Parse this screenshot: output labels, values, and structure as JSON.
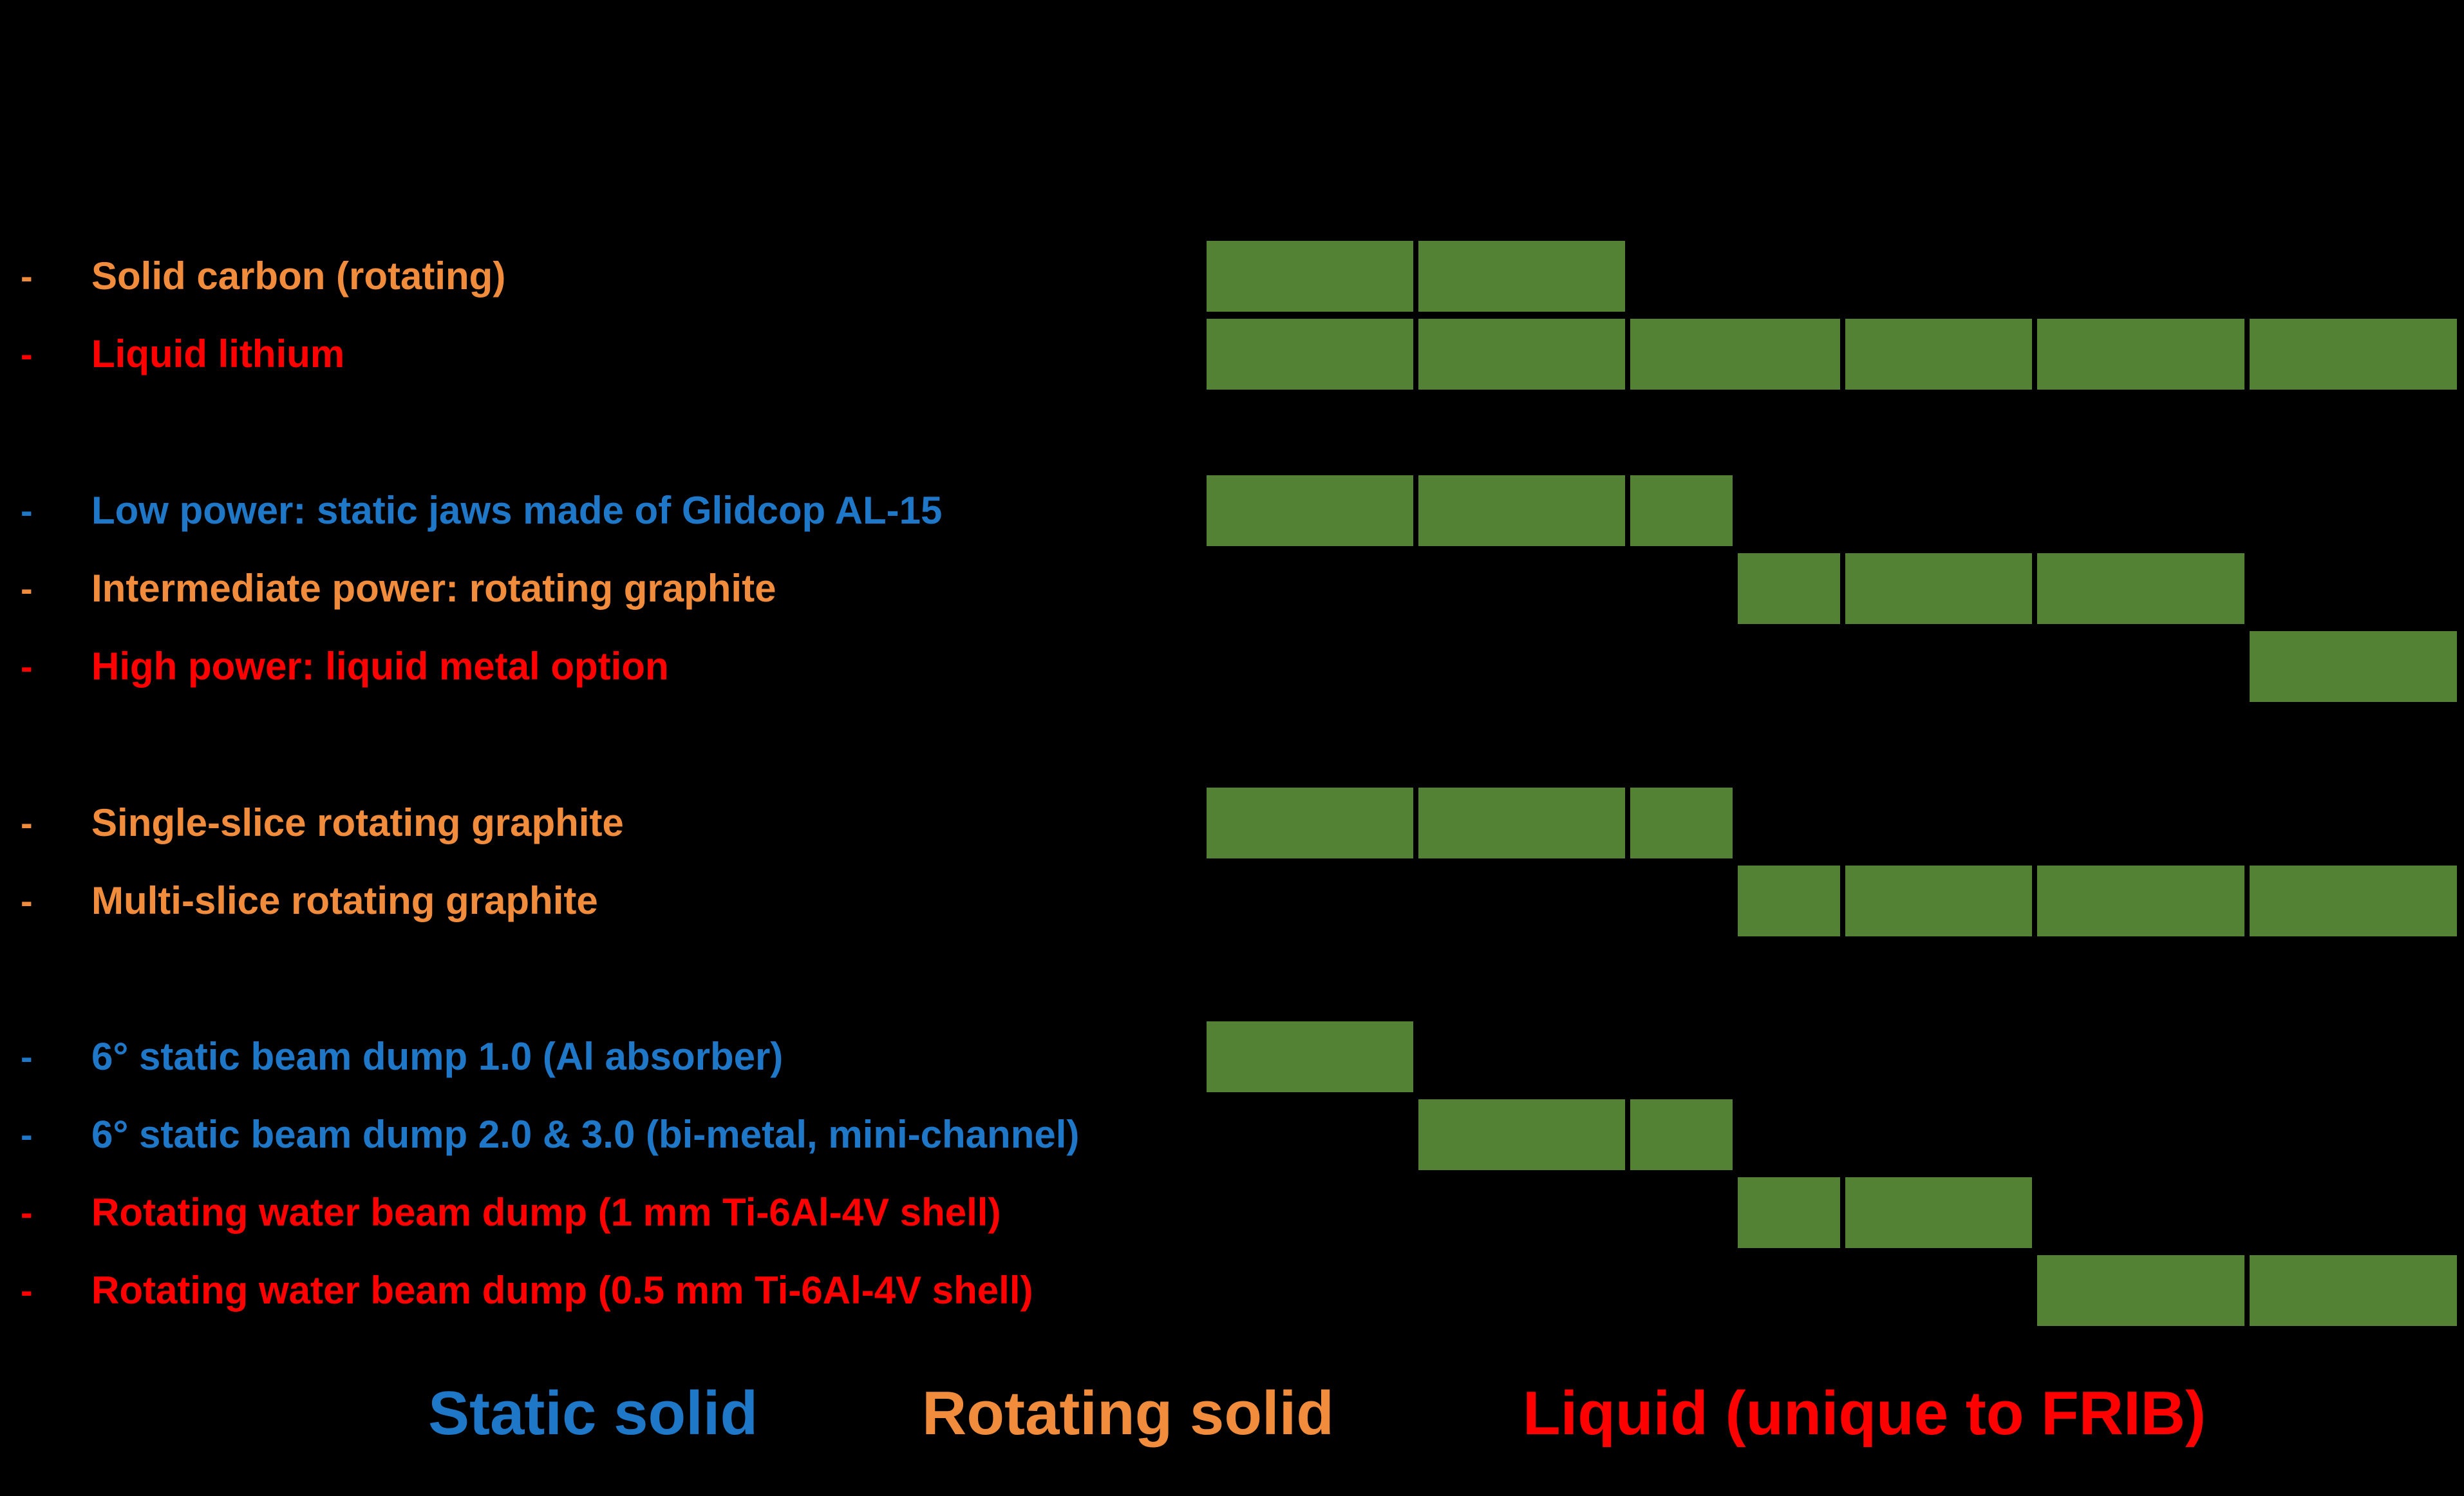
{
  "colors": {
    "static": "#1F77C8",
    "rotating": "#F08C3C",
    "liquid": "#FF0000",
    "bar": "#548235",
    "background": "#000000"
  },
  "rows": [
    {
      "dash": "-",
      "label": "Solid carbon (rotating)",
      "category": "rotating",
      "span": [
        0,
        2
      ]
    },
    {
      "dash": "-",
      "label": "Liquid lithium",
      "category": "liquid",
      "span": [
        0,
        6
      ]
    },
    {
      "dash": "-",
      "label": "Low power: static jaws made of Glidcop AL-15",
      "category": "static",
      "span": [
        0,
        2.5
      ]
    },
    {
      "dash": "-",
      "label": "Intermediate power: rotating graphite",
      "category": "rotating",
      "span": [
        2.5,
        5
      ]
    },
    {
      "dash": "-",
      "label": "High power: liquid metal option",
      "category": "liquid",
      "span": [
        5,
        6
      ]
    },
    {
      "dash": "-",
      "label": "Single-slice rotating graphite",
      "category": "rotating",
      "span": [
        0,
        2.5
      ]
    },
    {
      "dash": "-",
      "label": "Multi-slice rotating graphite",
      "category": "rotating",
      "span": [
        2.5,
        6
      ]
    },
    {
      "dash": "-",
      "label": "6° static beam dump 1.0 (Al absorber)",
      "category": "static",
      "span": [
        0,
        1
      ]
    },
    {
      "dash": "-",
      "label": "6° static beam dump 2.0 & 3.0 (bi-metal, mini-channel)",
      "category": "static",
      "span": [
        1,
        2.5
      ]
    },
    {
      "dash": "-",
      "label": "Rotating water beam dump (1 mm Ti-6Al-4V shell)",
      "category": "liquid",
      "span": [
        2.5,
        4
      ]
    },
    {
      "dash": "-",
      "label": "Rotating water beam dump (0.5 mm Ti-6Al-4V shell)",
      "category": "liquid",
      "span": [
        4,
        6
      ]
    }
  ],
  "legend": {
    "static": "Static solid",
    "rotating": "Rotating solid",
    "liquid": "Liquid (unique to FRIB)"
  }
}
